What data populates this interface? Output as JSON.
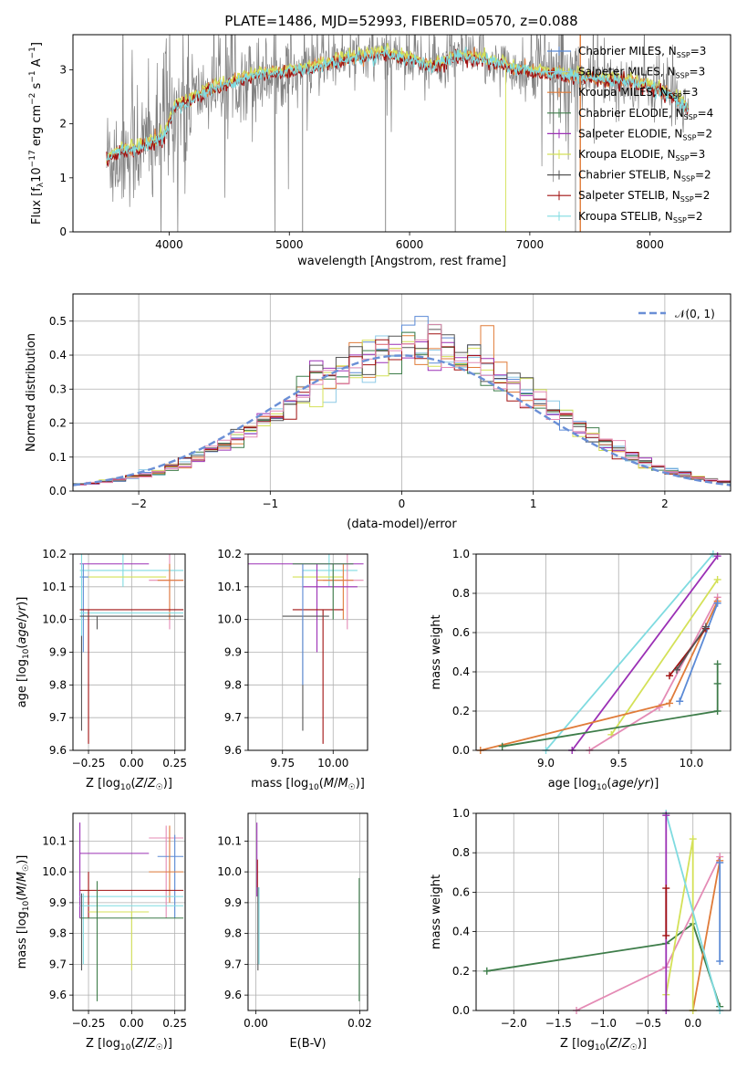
{
  "title": "PLATE=1486, MJD=52993, FIBERID=0570, z=0.088",
  "colors": {
    "chabrier_miles": "#5b8ad6",
    "salpeter_miles": "#8ecae6",
    "kroupa_miles": "#e07b39",
    "chabrier_elodie": "#3e7d4a",
    "salpeter_elodie": "#9b30b5",
    "kroupa_elodie": "#d4e157",
    "chabrier_stelib": "#555555",
    "salpeter_stelib": "#a01010",
    "kroupa_stelib": "#7fdbe0",
    "data": "#7f7f7f",
    "pink": "#e48bb5",
    "normal": "#6a8fd6"
  },
  "legend_spectrum": [
    {
      "key": "chabrier_miles",
      "label": "Chabrier MILES, N",
      "sub": "SSP",
      "n": "=3"
    },
    {
      "key": "salpeter_miles",
      "label": "Salpeter MILES, N",
      "sub": "SSP",
      "n": "=3"
    },
    {
      "key": "kroupa_miles",
      "label": "Kroupa MILES, N",
      "sub": "SSP",
      "n": "=3"
    },
    {
      "key": "chabrier_elodie",
      "label": "Chabrier ELODIE, N",
      "sub": "SSP",
      "n": "=4"
    },
    {
      "key": "salpeter_elodie",
      "label": "Salpeter ELODIE, N",
      "sub": "SSP",
      "n": "=2"
    },
    {
      "key": "kroupa_elodie",
      "label": "Kroupa ELODIE, N",
      "sub": "SSP",
      "n": "=3"
    },
    {
      "key": "chabrier_stelib",
      "label": "Chabrier STELIB, N",
      "sub": "SSP",
      "n": "=2"
    },
    {
      "key": "salpeter_stelib",
      "label": "Salpeter STELIB, N",
      "sub": "SSP",
      "n": "=2"
    },
    {
      "key": "kroupa_stelib",
      "label": "Kroupa STELIB, N",
      "sub": "SSP",
      "n": "=2"
    }
  ],
  "chart_data": [
    {
      "id": "spectrum",
      "type": "line",
      "xlabel": "wavelength [Angstrom, rest frame]",
      "ylabel": "Flux [f_λ 10^-17 erg cm^-2 s^-1 A^-1]",
      "xlim": [
        3200,
        8670
      ],
      "ylim": [
        0,
        3.65
      ],
      "xticks": [
        4000,
        5000,
        6000,
        7000,
        8000
      ],
      "yticks": [
        0,
        1,
        2,
        3
      ],
      "model_continuum": [
        [
          3480,
          1.35
        ],
        [
          3600,
          1.5
        ],
        [
          3800,
          1.6
        ],
        [
          3950,
          1.75
        ],
        [
          4050,
          2.3
        ],
        [
          4300,
          2.6
        ],
        [
          4500,
          2.75
        ],
        [
          4700,
          2.9
        ],
        [
          4900,
          2.95
        ],
        [
          5100,
          3.0
        ],
        [
          5300,
          3.1
        ],
        [
          5500,
          3.2
        ],
        [
          5800,
          3.3
        ],
        [
          6000,
          3.2
        ],
        [
          6200,
          3.05
        ],
        [
          6400,
          3.25
        ],
        [
          6550,
          3.2
        ],
        [
          6700,
          3.15
        ],
        [
          6900,
          3.0
        ],
        [
          7100,
          2.95
        ],
        [
          7300,
          2.9
        ],
        [
          7500,
          2.85
        ],
        [
          7700,
          2.8
        ],
        [
          7900,
          2.75
        ],
        [
          8100,
          2.6
        ],
        [
          8200,
          2.5
        ],
        [
          8300,
          2.3
        ]
      ]
    },
    {
      "id": "residuals",
      "type": "bar",
      "xlabel": "(data-model)/error",
      "ylabel": "Normed distribution",
      "xlim": [
        -2.5,
        2.5
      ],
      "ylim": [
        0,
        0.58
      ],
      "xticks": [
        -2,
        -1,
        0,
        1,
        2
      ],
      "yticks": [
        0.0,
        0.1,
        0.2,
        0.3,
        0.4,
        0.5
      ],
      "legend": "top-right",
      "normal_label": "𝒩(0, 1)",
      "bin_centers": [
        -2.45,
        -2.35,
        -2.25,
        -2.15,
        -2.05,
        -1.95,
        -1.85,
        -1.75,
        -1.65,
        -1.55,
        -1.45,
        -1.35,
        -1.25,
        -1.15,
        -1.05,
        -0.95,
        -0.85,
        -0.75,
        -0.65,
        -0.55,
        -0.45,
        -0.35,
        -0.25,
        -0.15,
        -0.05,
        0.05,
        0.15,
        0.25,
        0.35,
        0.45,
        0.55,
        0.65,
        0.75,
        0.85,
        0.95,
        1.05,
        1.15,
        1.25,
        1.35,
        1.45,
        1.55,
        1.65,
        1.75,
        1.85,
        1.95,
        2.05,
        2.15,
        2.25,
        2.35,
        2.45
      ]
    },
    {
      "id": "age_vs_Z",
      "type": "scatter",
      "xlabel": "Z [log10(Z/Z☉)]",
      "ylabel": "age [log10(age/yr)]",
      "xlim": [
        -0.34,
        0.31
      ],
      "ylim": [
        9.6,
        10.2
      ],
      "xticks": [
        -0.25,
        0.0,
        0.25
      ],
      "yticks": [
        9.6,
        9.7,
        9.8,
        9.9,
        10.0,
        10.1,
        10.2
      ]
    },
    {
      "id": "age_vs_mass",
      "type": "scatter",
      "xlabel": "mass [log10(M/M☉)]",
      "ylabel": "",
      "xlim": [
        9.58,
        10.17
      ],
      "ylim": [
        9.6,
        10.2
      ],
      "xticks": [
        9.75,
        10.0
      ],
      "yticks": [
        9.6,
        9.7,
        9.8,
        9.9,
        10.0,
        10.1,
        10.2
      ]
    },
    {
      "id": "massweight_vs_age",
      "type": "line",
      "xlabel": "age [log10(age/yr)]",
      "ylabel": "mass weight",
      "xlim": [
        8.52,
        10.27
      ],
      "ylim": [
        0,
        1
      ],
      "xticks": [
        9.0,
        9.5,
        10.0
      ],
      "yticks": [
        0.0,
        0.2,
        0.4,
        0.6,
        0.8,
        1.0
      ],
      "series": [
        {
          "key": "kroupa_stelib",
          "points": [
            [
              9.0,
              0.0
            ],
            [
              10.15,
              1.0
            ]
          ]
        },
        {
          "key": "salpeter_elodie",
          "points": [
            [
              9.18,
              0.0
            ],
            [
              10.18,
              0.99
            ]
          ]
        },
        {
          "key": "kroupa_elodie",
          "points": [
            [
              9.45,
              0.08
            ],
            [
              10.18,
              0.87
            ]
          ]
        },
        {
          "key": "pink",
          "points": [
            [
              9.3,
              0.0
            ],
            [
              9.78,
              0.22
            ],
            [
              10.18,
              0.78
            ]
          ]
        },
        {
          "key": "kroupa_miles",
          "points": [
            [
              8.55,
              0.0
            ],
            [
              9.85,
              0.24
            ],
            [
              10.18,
              0.76
            ]
          ]
        },
        {
          "key": "chabrier_miles",
          "points": [
            [
              9.92,
              0.25
            ],
            [
              10.18,
              0.75
            ]
          ]
        },
        {
          "key": "salpeter_stelib",
          "points": [
            [
              9.85,
              0.38
            ],
            [
              10.1,
              0.62
            ]
          ]
        },
        {
          "key": "chabrier_stelib",
          "points": [
            [
              9.9,
              0.41
            ],
            [
              10.1,
              0.63
            ]
          ]
        },
        {
          "key": "chabrier_elodie",
          "points": [
            [
              8.7,
              0.02
            ],
            [
              10.18,
              0.2
            ],
            [
              10.18,
              0.34
            ],
            [
              10.18,
              0.44
            ]
          ]
        }
      ]
    },
    {
      "id": "mass_vs_Z",
      "type": "scatter",
      "xlabel": "Z [log10(Z/Z☉)]",
      "ylabel": "mass [log10(M/M☉)]",
      "xlim": [
        -0.34,
        0.31
      ],
      "ylim": [
        9.55,
        10.19
      ],
      "xticks": [
        -0.25,
        0.0,
        0.25
      ],
      "yticks": [
        9.6,
        9.7,
        9.8,
        9.9,
        10.0,
        10.1
      ]
    },
    {
      "id": "mass_vs_ebv",
      "type": "scatter",
      "xlabel": "E(B-V)",
      "ylabel": "",
      "xlim": [
        -0.0015,
        0.0215
      ],
      "ylim": [
        9.55,
        10.19
      ],
      "xticks": [
        0.0,
        0.02
      ],
      "yticks": [
        9.6,
        9.7,
        9.8,
        9.9,
        10.0,
        10.1
      ]
    },
    {
      "id": "massweight_vs_Z",
      "type": "line",
      "xlabel": "Z [log10(Z/Z☉)]",
      "ylabel": "mass weight",
      "xlim": [
        -2.42,
        0.42
      ],
      "ylim": [
        0,
        1
      ],
      "xticks": [
        -2.0,
        -1.5,
        -1.0,
        -0.5,
        0.0
      ],
      "yticks": [
        0.0,
        0.2,
        0.4,
        0.6,
        0.8,
        1.0
      ],
      "series": [
        {
          "key": "chabrier_elodie",
          "points": [
            [
              -2.3,
              0.2
            ],
            [
              -0.3,
              0.34
            ],
            [
              0.0,
              0.44
            ],
            [
              0.3,
              0.02
            ]
          ]
        },
        {
          "key": "pink",
          "points": [
            [
              -1.3,
              0.0
            ],
            [
              -0.3,
              0.22
            ],
            [
              0.3,
              0.78
            ]
          ]
        },
        {
          "key": "kroupa_miles",
          "points": [
            [
              0.0,
              0.0
            ],
            [
              0.3,
              0.76
            ]
          ]
        },
        {
          "key": "kroupa_elodie",
          "points": [
            [
              -0.3,
              0.08
            ],
            [
              0.0,
              0.87
            ],
            [
              0.0,
              0.0
            ]
          ]
        },
        {
          "key": "kroupa_stelib",
          "points": [
            [
              -0.3,
              1.0
            ],
            [
              0.3,
              0.0
            ]
          ]
        },
        {
          "key": "salpeter_elodie",
          "points": [
            [
              -0.3,
              0.0
            ],
            [
              -0.3,
              0.99
            ]
          ]
        },
        {
          "key": "salpeter_stelib",
          "points": [
            [
              -0.3,
              0.38
            ],
            [
              -0.3,
              0.62
            ]
          ]
        },
        {
          "key": "chabrier_miles",
          "points": [
            [
              0.3,
              0.25
            ],
            [
              0.3,
              0.75
            ]
          ]
        }
      ]
    }
  ]
}
